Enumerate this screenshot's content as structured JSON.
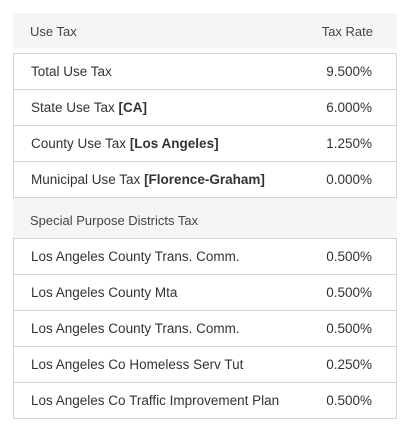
{
  "header": {
    "col_left": "Use Tax",
    "col_right": "Tax Rate"
  },
  "use_tax_rows": [
    {
      "label": "Total Use Tax",
      "qualifier": "",
      "rate": "9.500%"
    },
    {
      "label": "State Use Tax ",
      "qualifier": "[CA]",
      "rate": "6.000%"
    },
    {
      "label": "County Use Tax ",
      "qualifier": "[Los Angeles]",
      "rate": "1.250%"
    },
    {
      "label": "Municipal Use Tax ",
      "qualifier": "[Florence-Graham]",
      "rate": "0.000%"
    }
  ],
  "districts_section": {
    "title": "Special Purpose Districts Tax"
  },
  "district_rows": [
    {
      "label": "Los Angeles County Trans. Comm.",
      "rate": "0.500%"
    },
    {
      "label": "Los Angeles County Mta",
      "rate": "0.500%"
    },
    {
      "label": "Los Angeles County Trans. Comm.",
      "rate": "0.500%"
    },
    {
      "label": "Los Angeles Co Homeless Serv Tut",
      "rate": "0.250%"
    },
    {
      "label": "Los Angeles Co Traffic Improvement Plan",
      "rate": "0.500%"
    }
  ]
}
